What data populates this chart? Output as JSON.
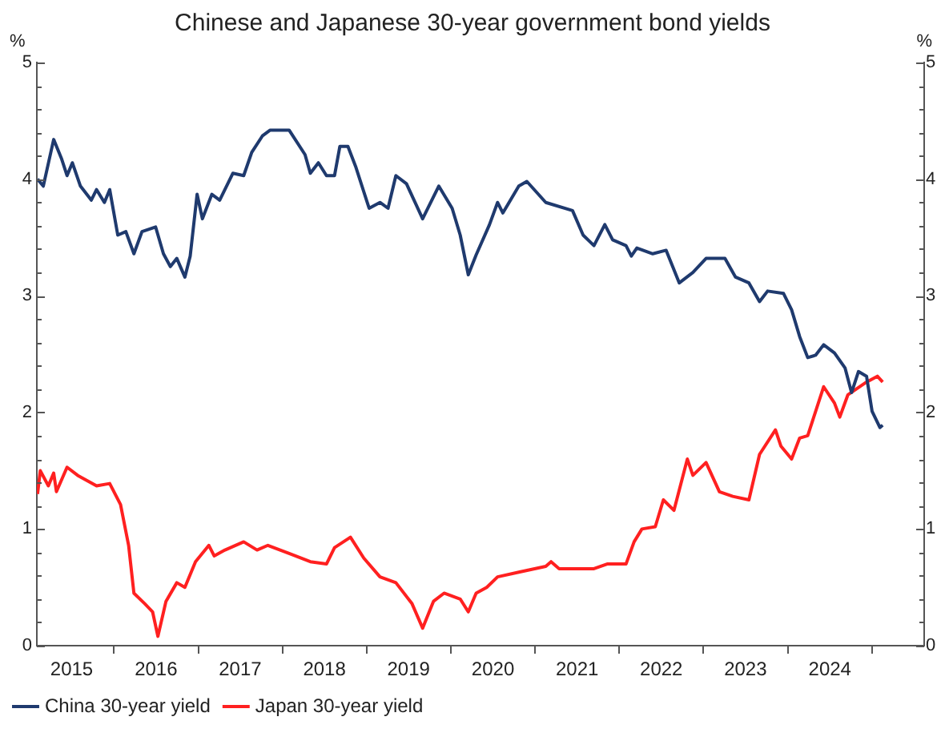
{
  "chart_data": {
    "type": "line",
    "title": "Chinese and Japanese 30-year government bond yields",
    "ylabel": "%",
    "y2label": "%",
    "xlim": [
      "2015-02-01",
      "2025-08-15"
    ],
    "xticks": [
      {
        "value": "2015-07-02",
        "label": "2015"
      },
      {
        "value": "2016-01-01",
        "label": null
      },
      {
        "value": "2016-07-02",
        "label": "2016"
      },
      {
        "value": "2017-01-01",
        "label": null
      },
      {
        "value": "2017-07-02",
        "label": "2017"
      },
      {
        "value": "2018-01-01",
        "label": null
      },
      {
        "value": "2018-07-02",
        "label": "2018"
      },
      {
        "value": "2019-01-01",
        "label": null
      },
      {
        "value": "2019-07-02",
        "label": "2019"
      },
      {
        "value": "2020-01-01",
        "label": null
      },
      {
        "value": "2020-07-02",
        "label": "2020"
      },
      {
        "value": "2021-01-01",
        "label": null
      },
      {
        "value": "2021-07-02",
        "label": "2021"
      },
      {
        "value": "2022-01-01",
        "label": null
      },
      {
        "value": "2022-07-02",
        "label": "2022"
      },
      {
        "value": "2023-01-01",
        "label": null
      },
      {
        "value": "2023-07-02",
        "label": "2023"
      },
      {
        "value": "2024-01-01",
        "label": null
      },
      {
        "value": "2024-07-02",
        "label": "2024"
      },
      {
        "value": "2025-01-01",
        "label": null
      }
    ],
    "ylim": [
      0,
      5
    ],
    "yticks": [
      0,
      {
        "value": 0.2,
        "label": null
      },
      {
        "value": 0.4,
        "label": null
      },
      {
        "value": 0.6,
        "label": null
      },
      {
        "value": 0.8,
        "label": null
      },
      1,
      {
        "value": 1.2,
        "label": null
      },
      {
        "value": 1.4,
        "label": null
      },
      {
        "value": 1.6,
        "label": null
      },
      {
        "value": 1.8,
        "label": null
      },
      2,
      {
        "value": 2.2,
        "label": null
      },
      {
        "value": 2.4,
        "label": null
      },
      {
        "value": 2.6,
        "label": null
      },
      {
        "value": 2.8,
        "label": null
      },
      3,
      {
        "value": 3.2,
        "label": null
      },
      {
        "value": 3.4,
        "label": null
      },
      {
        "value": 3.6,
        "label": null
      },
      {
        "value": 3.8,
        "label": null
      },
      4,
      {
        "value": 4.2,
        "label": null
      },
      {
        "value": 4.4,
        "label": null
      },
      {
        "value": 4.6,
        "label": null
      },
      {
        "value": 4.8,
        "label": null
      },
      5
    ],
    "y2lim": [
      0,
      5
    ],
    "y2ticks": [
      0,
      {
        "value": 0.2,
        "label": null
      },
      {
        "value": 0.4,
        "label": null
      },
      {
        "value": 0.6,
        "label": null
      },
      {
        "value": 0.8,
        "label": null
      },
      1,
      {
        "value": 1.2,
        "label": null
      },
      {
        "value": 1.4,
        "label": null
      },
      {
        "value": 1.6,
        "label": null
      },
      {
        "value": 1.8,
        "label": null
      },
      2,
      {
        "value": 2.2,
        "label": null
      },
      {
        "value": 2.4,
        "label": null
      },
      {
        "value": 2.6,
        "label": null
      },
      {
        "value": 2.8,
        "label": null
      },
      3,
      {
        "value": 3.2,
        "label": null
      },
      {
        "value": 3.4,
        "label": null
      },
      {
        "value": 3.6,
        "label": null
      },
      {
        "value": 3.8,
        "label": null
      },
      4,
      {
        "value": 4.2,
        "label": null
      },
      {
        "value": 4.4,
        "label": null
      },
      {
        "value": 4.6,
        "label": null
      },
      {
        "value": 4.8,
        "label": null
      },
      5
    ],
    "grid": false,
    "legend": "bottom",
    "marker": "none",
    "line_style": "solid",
    "series": [
      {
        "name": "China 30-year yield",
        "color": "#1f3a6e",
        "x": [
          "2015-02-04",
          "2015-03-01",
          "2015-04-15",
          "2015-05-20",
          "2015-06-12",
          "2015-07-05",
          "2015-08-09",
          "2015-09-25",
          "2015-10-18",
          "2015-11-21",
          "2015-12-14",
          "2016-01-18",
          "2016-02-22",
          "2016-03-28",
          "2016-05-02",
          "2016-06-30",
          "2016-08-03",
          "2016-09-02",
          "2016-09-30",
          "2016-11-04",
          "2016-11-27",
          "2016-12-27",
          "2017-01-19",
          "2017-03-01",
          "2017-04-04",
          "2017-05-31",
          "2017-07-17",
          "2017-08-21",
          "2017-10-06",
          "2017-11-09",
          "2018-01-30",
          "2018-04-09",
          "2018-05-02",
          "2018-06-06",
          "2018-07-11",
          "2018-08-15",
          "2018-09-07",
          "2018-10-12",
          "2018-11-16",
          "2019-01-12",
          "2019-02-28",
          "2019-04-04",
          "2019-05-08",
          "2019-06-23",
          "2019-09-01",
          "2019-11-10",
          "2020-01-07",
          "2020-02-11",
          "2020-03-17",
          "2020-04-20",
          "2020-06-17",
          "2020-07-22",
          "2020-08-14",
          "2020-10-22",
          "2020-11-26",
          "2021-02-16",
          "2021-06-12",
          "2021-07-28",
          "2021-09-13",
          "2021-10-30",
          "2021-12-03",
          "2022-01-30",
          "2022-02-22",
          "2022-03-18",
          "2022-05-26",
          "2022-07-23",
          "2022-09-18",
          "2022-11-16",
          "2023-01-12",
          "2023-04-04",
          "2023-05-20",
          "2023-07-17",
          "2023-09-01",
          "2023-10-06",
          "2023-12-14",
          "2024-01-18",
          "2024-02-22",
          "2024-03-28",
          "2024-05-01",
          "2024-06-05",
          "2024-07-22",
          "2024-09-06",
          "2024-10-04",
          "2024-11-03",
          "2024-12-08",
          "2025-01-01",
          "2025-02-04",
          "2025-02-16"
        ],
        "values": [
          4.0,
          3.94,
          4.34,
          4.17,
          4.03,
          4.14,
          3.94,
          3.82,
          3.91,
          3.8,
          3.91,
          3.52,
          3.55,
          3.36,
          3.55,
          3.59,
          3.36,
          3.25,
          3.32,
          3.16,
          3.34,
          3.87,
          3.66,
          3.87,
          3.82,
          4.05,
          4.03,
          4.23,
          4.37,
          4.42,
          4.42,
          4.21,
          4.05,
          4.14,
          4.03,
          4.03,
          4.28,
          4.28,
          4.1,
          3.75,
          3.8,
          3.75,
          4.03,
          3.96,
          3.66,
          3.94,
          3.75,
          3.52,
          3.18,
          3.35,
          3.61,
          3.8,
          3.71,
          3.94,
          3.98,
          3.8,
          3.73,
          3.52,
          3.43,
          3.61,
          3.48,
          3.43,
          3.34,
          3.41,
          3.36,
          3.39,
          3.11,
          3.2,
          3.32,
          3.32,
          3.16,
          3.11,
          2.95,
          3.04,
          3.02,
          2.88,
          2.65,
          2.47,
          2.49,
          2.58,
          2.51,
          2.38,
          2.17,
          2.35,
          2.31,
          2.01,
          1.87,
          1.89
        ]
      },
      {
        "name": "Japan 30-year yield",
        "color": "#ff2020",
        "x": [
          "2015-02-04",
          "2015-02-16",
          "2015-03-23",
          "2015-04-15",
          "2015-04-27",
          "2015-06-12",
          "2015-07-28",
          "2015-10-18",
          "2015-12-14",
          "2016-01-30",
          "2016-03-05",
          "2016-03-28",
          "2016-05-14",
          "2016-06-17",
          "2016-07-10",
          "2016-08-14",
          "2016-09-30",
          "2016-11-04",
          "2016-12-20",
          "2017-02-16",
          "2017-03-11",
          "2017-04-27",
          "2017-07-17",
          "2017-09-13",
          "2017-10-30",
          "2018-01-30",
          "2018-05-02",
          "2018-07-11",
          "2018-08-15",
          "2018-10-23",
          "2018-12-20",
          "2019-02-28",
          "2019-05-08",
          "2019-07-17",
          "2019-09-01",
          "2019-10-18",
          "2019-12-03",
          "2020-02-11",
          "2020-03-17",
          "2020-04-20",
          "2020-06-05",
          "2020-07-22",
          "2020-10-22",
          "2021-02-16",
          "2021-03-11",
          "2021-04-15",
          "2021-09-13",
          "2021-11-09",
          "2022-01-30",
          "2022-03-06",
          "2022-04-09",
          "2022-06-06",
          "2022-07-11",
          "2022-08-26",
          "2022-10-23",
          "2022-11-16",
          "2023-01-12",
          "2023-03-11",
          "2023-05-08",
          "2023-07-17",
          "2023-09-01",
          "2023-11-09",
          "2023-12-03",
          "2024-01-18",
          "2024-02-22",
          "2024-03-28",
          "2024-06-05",
          "2024-07-22",
          "2024-08-14",
          "2024-09-18",
          "2024-12-08",
          "2025-01-24",
          "2025-02-16"
        ],
        "values": [
          1.3,
          1.5,
          1.37,
          1.48,
          1.32,
          1.53,
          1.46,
          1.37,
          1.39,
          1.21,
          0.86,
          0.45,
          0.36,
          0.29,
          0.08,
          0.38,
          0.54,
          0.5,
          0.72,
          0.86,
          0.77,
          0.82,
          0.89,
          0.82,
          0.86,
          0.79,
          0.72,
          0.7,
          0.84,
          0.93,
          0.75,
          0.59,
          0.54,
          0.36,
          0.15,
          0.38,
          0.45,
          0.4,
          0.29,
          0.45,
          0.5,
          0.59,
          0.63,
          0.68,
          0.72,
          0.66,
          0.66,
          0.7,
          0.7,
          0.89,
          1.0,
          1.02,
          1.25,
          1.16,
          1.6,
          1.46,
          1.57,
          1.32,
          1.28,
          1.25,
          1.64,
          1.85,
          1.71,
          1.6,
          1.78,
          1.8,
          2.22,
          2.08,
          1.96,
          2.15,
          2.26,
          2.31,
          2.26
        ]
      }
    ]
  }
}
